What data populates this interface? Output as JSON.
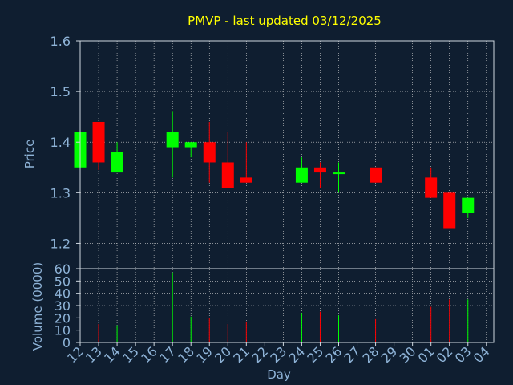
{
  "chart_data": {
    "type": "candlestick",
    "title": "PMVP - last updated 03/12/2025",
    "xlabel": "Day",
    "price_ylabel": "Price",
    "volume_ylabel": "Volume (0000)",
    "price_ylim": [
      1.15,
      1.6
    ],
    "price_ticks": [
      "1.2",
      "1.3",
      "1.4",
      "1.5",
      "1.6"
    ],
    "volume_ylim": [
      0,
      60
    ],
    "volume_ticks": [
      "0",
      "10",
      "20",
      "30",
      "40",
      "50",
      "60"
    ],
    "x_ticks": [
      "12",
      "13",
      "14",
      "15",
      "16",
      "17",
      "18",
      "19",
      "20",
      "21",
      "22",
      "23",
      "24",
      "25",
      "26",
      "27",
      "28",
      "29",
      "30",
      "01",
      "02",
      "03",
      "04"
    ],
    "grid": true,
    "colors": {
      "up": "#00ff00",
      "down": "#ff0000",
      "title": "#ffff00",
      "axis_text": "#8fb4d8",
      "background": "#0f1e30"
    },
    "candles": [
      {
        "day": "12",
        "open": 1.35,
        "high": 1.42,
        "low": 1.35,
        "close": 1.42,
        "volume": 0
      },
      {
        "day": "13",
        "open": 1.44,
        "high": 1.44,
        "low": 1.345,
        "close": 1.36,
        "volume": 15
      },
      {
        "day": "14",
        "open": 1.34,
        "high": 1.4,
        "low": 1.34,
        "close": 1.38,
        "volume": 14
      },
      {
        "day": "17",
        "open": 1.39,
        "high": 1.46,
        "low": 1.33,
        "close": 1.42,
        "volume": 57
      },
      {
        "day": "18",
        "open": 1.39,
        "high": 1.4,
        "low": 1.37,
        "close": 1.4,
        "volume": 21
      },
      {
        "day": "19",
        "open": 1.4,
        "high": 1.44,
        "low": 1.32,
        "close": 1.36,
        "volume": 20
      },
      {
        "day": "20",
        "open": 1.36,
        "high": 1.42,
        "low": 1.31,
        "close": 1.31,
        "volume": 15
      },
      {
        "day": "21",
        "open": 1.33,
        "high": 1.4,
        "low": 1.32,
        "close": 1.32,
        "volume": 17
      },
      {
        "day": "24",
        "open": 1.32,
        "high": 1.37,
        "low": 1.32,
        "close": 1.35,
        "volume": 24
      },
      {
        "day": "25",
        "open": 1.35,
        "high": 1.36,
        "low": 1.31,
        "close": 1.34,
        "volume": 25
      },
      {
        "day": "26",
        "open": 1.337,
        "high": 1.36,
        "low": 1.3,
        "close": 1.34,
        "volume": 22
      },
      {
        "day": "28",
        "open": 1.35,
        "high": 1.35,
        "low": 1.32,
        "close": 1.32,
        "volume": 19
      },
      {
        "day": "01",
        "open": 1.33,
        "high": 1.35,
        "low": 1.29,
        "close": 1.29,
        "volume": 29
      },
      {
        "day": "02",
        "open": 1.3,
        "high": 1.3,
        "low": 1.23,
        "close": 1.23,
        "volume": 35
      },
      {
        "day": "03",
        "open": 1.26,
        "high": 1.29,
        "low": 1.25,
        "close": 1.29,
        "volume": 35
      }
    ]
  }
}
